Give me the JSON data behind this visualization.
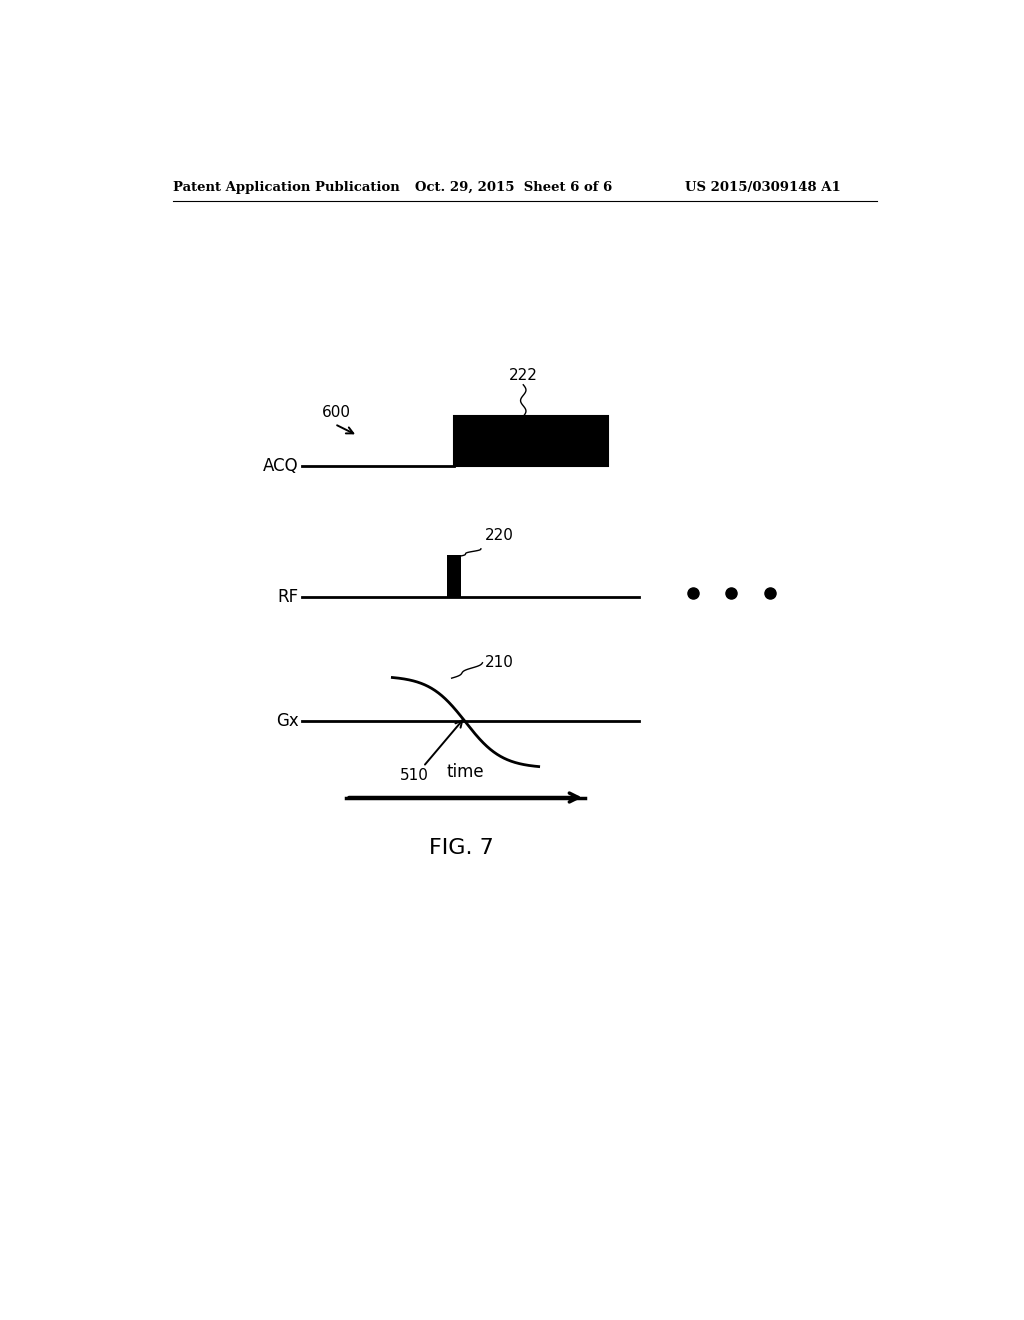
{
  "background_color": "#ffffff",
  "header_left": "Patent Application Publication",
  "header_center": "Oct. 29, 2015  Sheet 6 of 6",
  "header_right": "US 2015/0309148 A1",
  "fig_label": "FIG. 7",
  "diagram_label": "600",
  "acq_label": "ACQ",
  "rf_label": "RF",
  "gx_label": "Gx",
  "label_222": "222",
  "label_220": "220",
  "label_210": "210",
  "label_510": "510",
  "time_label": "time",
  "line_color": "#000000"
}
